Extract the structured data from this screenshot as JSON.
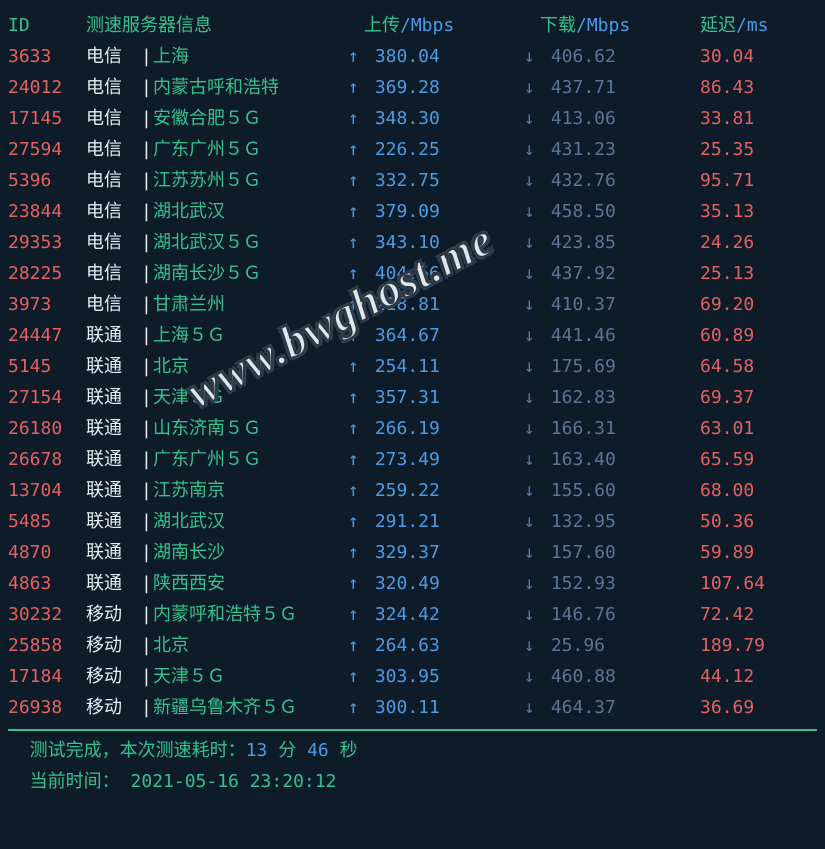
{
  "colors": {
    "background": "#0e1b29",
    "green": "#36c28e",
    "red": "#e46161",
    "white": "#e6edf3",
    "blue": "#4a9ce6",
    "dim": "#5d7593",
    "dimblue": "#5676a3",
    "hr": "#36c28e"
  },
  "header": {
    "id": "ID",
    "server_info": "测速服务器信息",
    "upload": "上传",
    "download": "下载",
    "latency": "延迟",
    "unit_mbps": "/Mbps",
    "unit_ms": "/ms"
  },
  "arrows": {
    "up": "↑",
    "down": "↓"
  },
  "rows": [
    {
      "id": "3633",
      "isp": "电信",
      "loc": "上海",
      "up": "380.04",
      "down": "406.62",
      "lat": "30.04"
    },
    {
      "id": "24012",
      "isp": "电信",
      "loc": "内蒙古呼和浩特",
      "up": "369.28",
      "down": "437.71",
      "lat": "86.43"
    },
    {
      "id": "17145",
      "isp": "电信",
      "loc": "安徽合肥５Ｇ",
      "up": "348.30",
      "down": "413.06",
      "lat": "33.81"
    },
    {
      "id": "27594",
      "isp": "电信",
      "loc": "广东广州５Ｇ",
      "up": "226.25",
      "down": "431.23",
      "lat": "25.35"
    },
    {
      "id": "5396",
      "isp": "电信",
      "loc": "江苏苏州５Ｇ",
      "up": "332.75",
      "down": "432.76",
      "lat": "95.71"
    },
    {
      "id": "23844",
      "isp": "电信",
      "loc": "湖北武汉",
      "up": "379.09",
      "down": "458.50",
      "lat": "35.13"
    },
    {
      "id": "29353",
      "isp": "电信",
      "loc": "湖北武汉５Ｇ",
      "up": "343.10",
      "down": "423.85",
      "lat": "24.26"
    },
    {
      "id": "28225",
      "isp": "电信",
      "loc": "湖南长沙５Ｇ",
      "up": "404.66",
      "down": "437.92",
      "lat": "25.13"
    },
    {
      "id": "3973",
      "isp": "电信",
      "loc": "甘肃兰州",
      "up": "218.81",
      "down": "410.37",
      "lat": "69.20"
    },
    {
      "id": "24447",
      "isp": "联通",
      "loc": "上海５Ｇ",
      "up": "364.67",
      "down": "441.46",
      "lat": "60.89"
    },
    {
      "id": "5145",
      "isp": "联通",
      "loc": "北京",
      "up": "254.11",
      "down": "175.69",
      "lat": "64.58"
    },
    {
      "id": "27154",
      "isp": "联通",
      "loc": "天津５Ｇ",
      "up": "357.31",
      "down": "162.83",
      "lat": "69.37"
    },
    {
      "id": "26180",
      "isp": "联通",
      "loc": "山东济南５Ｇ",
      "up": "266.19",
      "down": "166.31",
      "lat": "63.01"
    },
    {
      "id": "26678",
      "isp": "联通",
      "loc": "广东广州５Ｇ",
      "up": "273.49",
      "down": "163.40",
      "lat": "65.59"
    },
    {
      "id": "13704",
      "isp": "联通",
      "loc": "江苏南京",
      "up": "259.22",
      "down": "155.60",
      "lat": "68.00"
    },
    {
      "id": "5485",
      "isp": "联通",
      "loc": "湖北武汉",
      "up": "291.21",
      "down": "132.95",
      "lat": "50.36"
    },
    {
      "id": "4870",
      "isp": "联通",
      "loc": "湖南长沙",
      "up": "329.37",
      "down": "157.60",
      "lat": "59.89"
    },
    {
      "id": "4863",
      "isp": "联通",
      "loc": "陕西西安",
      "up": "320.49",
      "down": "152.93",
      "lat": "107.64"
    },
    {
      "id": "30232",
      "isp": "移动",
      "loc": "内蒙呼和浩特５Ｇ",
      "up": "324.42",
      "down": "146.76",
      "lat": "72.42"
    },
    {
      "id": "25858",
      "isp": "移动",
      "loc": "北京",
      "up": "264.63",
      "down": "25.96",
      "lat": "189.79"
    },
    {
      "id": "17184",
      "isp": "移动",
      "loc": "天津５Ｇ",
      "up": "303.95",
      "down": "460.88",
      "lat": "44.12"
    },
    {
      "id": "26938",
      "isp": "移动",
      "loc": "新疆乌鲁木齐５Ｇ",
      "up": "300.11",
      "down": "464.37",
      "lat": "36.69"
    }
  ],
  "footer": {
    "done_prefix": "  测试完成，本次测速耗时：",
    "minutes": "13",
    "min_unit": " 分 ",
    "seconds": "46",
    "sec_unit": " 秒",
    "now_prefix": "  当前时间： ",
    "timestamp": "2021-05-16 23:20:12"
  },
  "watermark": "www.bwghost.me"
}
